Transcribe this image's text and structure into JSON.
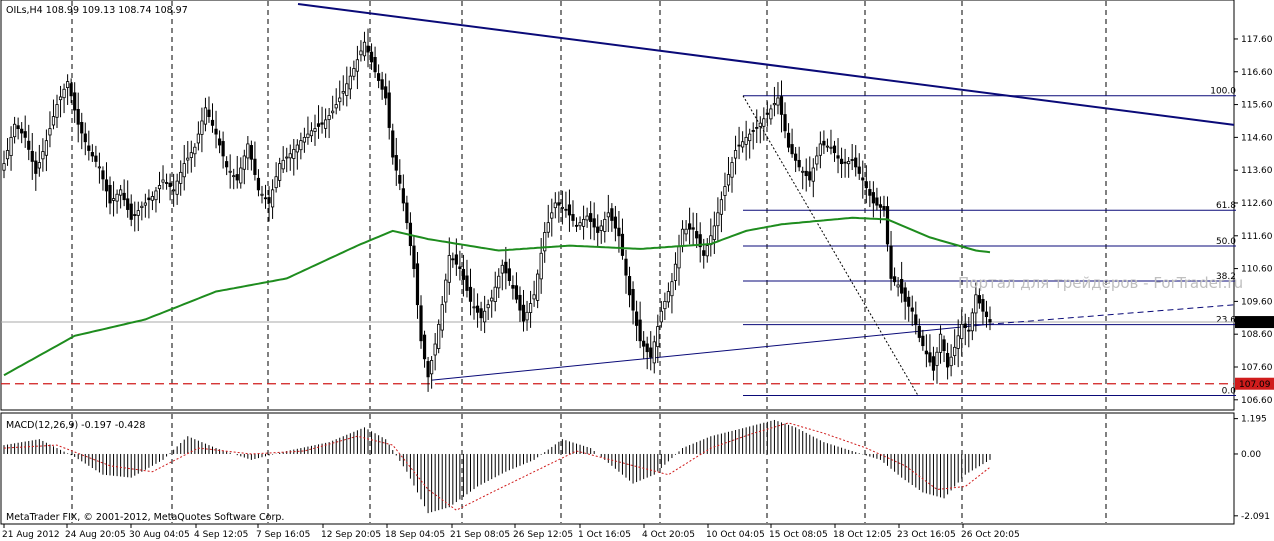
{
  "chart_data": {
    "type": "candlestick",
    "platform": "MetaTrader",
    "symbol": "OILs",
    "timeframe": "H4",
    "header": "OILs,H4  108.99 109.13 108.74 108.97",
    "ohlc_last": {
      "open": 108.99,
      "high": 109.13,
      "low": 108.74,
      "close": 108.97
    },
    "price_axis": {
      "ticks": [
        "117.60",
        "116.60",
        "115.60",
        "114.60",
        "113.60",
        "112.60",
        "111.60",
        "110.60",
        "109.60",
        "108.60",
        "107.60",
        "106.60"
      ],
      "range": [
        106.35,
        118.3
      ]
    },
    "current_price_label": "108.97",
    "support_price_label": "107.09",
    "x_axis_labels": [
      "21 Aug 2012",
      "24 Aug 20:05",
      "30 Aug 04:05",
      "4 Sep 12:05",
      "7 Sep 16:05",
      "12 Sep 20:05",
      "18 Sep 04:05",
      "21 Sep 08:05",
      "26 Sep 12:05",
      "1 Oct 16:05",
      "4 Oct 20:05",
      "10 Oct 04:05",
      "15 Oct 08:05",
      "18 Oct 12:05",
      "23 Oct 16:05",
      "26 Oct 20:05"
    ],
    "fibonacci": {
      "levels": [
        {
          "label": "100.0",
          "price": 115.87
        },
        {
          "label": "61.8",
          "price": 112.38
        },
        {
          "label": "50.0",
          "price": 111.29
        },
        {
          "label": "38.2",
          "price": 110.22
        },
        {
          "label": "23.6",
          "price": 108.89
        },
        {
          "label": "0.0",
          "price": 106.73
        }
      ]
    },
    "price_series": [
      {
        "x": 0,
        "v": 113.8
      },
      {
        "x": 3,
        "v": 115.0
      },
      {
        "x": 6,
        "v": 114.6
      },
      {
        "x": 9,
        "v": 113.5
      },
      {
        "x": 12,
        "v": 114.5
      },
      {
        "x": 15,
        "v": 115.6
      },
      {
        "x": 18,
        "v": 116.3
      },
      {
        "x": 21,
        "v": 115.0
      },
      {
        "x": 24,
        "v": 114.2
      },
      {
        "x": 27,
        "v": 113.7
      },
      {
        "x": 30,
        "v": 112.6
      },
      {
        "x": 33,
        "v": 113.0
      },
      {
        "x": 36,
        "v": 112.1
      },
      {
        "x": 39,
        "v": 112.5
      },
      {
        "x": 42,
        "v": 112.8
      },
      {
        "x": 45,
        "v": 113.3
      },
      {
        "x": 48,
        "v": 113.0
      },
      {
        "x": 51,
        "v": 113.8
      },
      {
        "x": 54,
        "v": 114.3
      },
      {
        "x": 57,
        "v": 115.5
      },
      {
        "x": 60,
        "v": 114.7
      },
      {
        "x": 63,
        "v": 113.7
      },
      {
        "x": 66,
        "v": 113.3
      },
      {
        "x": 69,
        "v": 114.4
      },
      {
        "x": 72,
        "v": 113.0
      },
      {
        "x": 75,
        "v": 112.6
      },
      {
        "x": 78,
        "v": 113.8
      },
      {
        "x": 81,
        "v": 114.1
      },
      {
        "x": 84,
        "v": 114.5
      },
      {
        "x": 87,
        "v": 114.8
      },
      {
        "x": 90,
        "v": 115.0
      },
      {
        "x": 93,
        "v": 115.4
      },
      {
        "x": 96,
        "v": 116.0
      },
      {
        "x": 99,
        "v": 116.7
      },
      {
        "x": 102,
        "v": 117.5
      },
      {
        "x": 105,
        "v": 116.6
      },
      {
        "x": 108,
        "v": 115.8
      },
      {
        "x": 110,
        "v": 114.0
      },
      {
        "x": 112,
        "v": 113.2
      },
      {
        "x": 114,
        "v": 112.0
      },
      {
        "x": 116,
        "v": 110.6
      },
      {
        "x": 118,
        "v": 108.4
      },
      {
        "x": 120,
        "v": 107.3
      },
      {
        "x": 122,
        "v": 108.3
      },
      {
        "x": 124,
        "v": 109.5
      },
      {
        "x": 126,
        "v": 111.0
      },
      {
        "x": 129,
        "v": 110.6
      },
      {
        "x": 132,
        "v": 109.6
      },
      {
        "x": 135,
        "v": 109.1
      },
      {
        "x": 138,
        "v": 109.7
      },
      {
        "x": 141,
        "v": 110.7
      },
      {
        "x": 144,
        "v": 110.0
      },
      {
        "x": 147,
        "v": 109.0
      },
      {
        "x": 150,
        "v": 109.8
      },
      {
        "x": 153,
        "v": 111.7
      },
      {
        "x": 156,
        "v": 112.6
      },
      {
        "x": 159,
        "v": 112.4
      },
      {
        "x": 162,
        "v": 111.9
      },
      {
        "x": 165,
        "v": 112.2
      },
      {
        "x": 168,
        "v": 111.7
      },
      {
        "x": 171,
        "v": 112.3
      },
      {
        "x": 174,
        "v": 111.6
      },
      {
        "x": 177,
        "v": 109.8
      },
      {
        "x": 180,
        "v": 108.4
      },
      {
        "x": 183,
        "v": 107.9
      },
      {
        "x": 186,
        "v": 109.3
      },
      {
        "x": 189,
        "v": 110.2
      },
      {
        "x": 192,
        "v": 111.8
      },
      {
        "x": 195,
        "v": 111.8
      },
      {
        "x": 198,
        "v": 111.0
      },
      {
        "x": 201,
        "v": 111.9
      },
      {
        "x": 204,
        "v": 113.1
      },
      {
        "x": 207,
        "v": 114.2
      },
      {
        "x": 210,
        "v": 114.6
      },
      {
        "x": 213,
        "v": 114.9
      },
      {
        "x": 216,
        "v": 115.3
      },
      {
        "x": 219,
        "v": 115.8
      },
      {
        "x": 222,
        "v": 114.3
      },
      {
        "x": 225,
        "v": 113.7
      },
      {
        "x": 228,
        "v": 113.3
      },
      {
        "x": 231,
        "v": 114.4
      },
      {
        "x": 234,
        "v": 114.3
      },
      {
        "x": 237,
        "v": 113.8
      },
      {
        "x": 240,
        "v": 113.9
      },
      {
        "x": 243,
        "v": 113.3
      },
      {
        "x": 246,
        "v": 112.6
      },
      {
        "x": 249,
        "v": 112.4
      },
      {
        "x": 251,
        "v": 110.3
      },
      {
        "x": 253,
        "v": 110.1
      },
      {
        "x": 255,
        "v": 109.6
      },
      {
        "x": 257,
        "v": 109.3
      },
      {
        "x": 259,
        "v": 108.5
      },
      {
        "x": 261,
        "v": 108.0
      },
      {
        "x": 263,
        "v": 107.5
      },
      {
        "x": 265,
        "v": 108.6
      },
      {
        "x": 267,
        "v": 107.6
      },
      {
        "x": 269,
        "v": 108.2
      },
      {
        "x": 271,
        "v": 108.9
      },
      {
        "x": 273,
        "v": 108.7
      },
      {
        "x": 275,
        "v": 109.8
      },
      {
        "x": 277,
        "v": 109.3
      },
      {
        "x": 279,
        "v": 108.97
      }
    ],
    "ma_series": [
      {
        "x": 0,
        "v": 107.35
      },
      {
        "x": 20,
        "v": 108.55
      },
      {
        "x": 40,
        "v": 109.05
      },
      {
        "x": 60,
        "v": 109.9
      },
      {
        "x": 80,
        "v": 110.3
      },
      {
        "x": 100,
        "v": 111.3
      },
      {
        "x": 110,
        "v": 111.75
      },
      {
        "x": 120,
        "v": 111.5
      },
      {
        "x": 140,
        "v": 111.15
      },
      {
        "x": 160,
        "v": 111.3
      },
      {
        "x": 180,
        "v": 111.2
      },
      {
        "x": 200,
        "v": 111.35
      },
      {
        "x": 210,
        "v": 111.75
      },
      {
        "x": 220,
        "v": 111.95
      },
      {
        "x": 240,
        "v": 112.15
      },
      {
        "x": 250,
        "v": 112.1
      },
      {
        "x": 262,
        "v": 111.55
      },
      {
        "x": 275,
        "v": 111.15
      },
      {
        "x": 279,
        "v": 111.1
      }
    ],
    "macd": {
      "label": "MACD(12,26,9) -0.197 -0.428",
      "ticks": [
        "1.195",
        "0.00",
        "-2.091"
      ],
      "range": [
        -2.3,
        1.25
      ],
      "histogram": [
        {
          "x": 0,
          "v": 0.3
        },
        {
          "x": 10,
          "v": 0.5
        },
        {
          "x": 20,
          "v": -0.1
        },
        {
          "x": 28,
          "v": -0.7
        },
        {
          "x": 36,
          "v": -0.8
        },
        {
          "x": 45,
          "v": -0.2
        },
        {
          "x": 52,
          "v": 0.6
        },
        {
          "x": 60,
          "v": 0.2
        },
        {
          "x": 70,
          "v": -0.2
        },
        {
          "x": 80,
          "v": 0.1
        },
        {
          "x": 92,
          "v": 0.4
        },
        {
          "x": 102,
          "v": 0.9
        },
        {
          "x": 108,
          "v": 0.5
        },
        {
          "x": 114,
          "v": -0.6
        },
        {
          "x": 120,
          "v": -2.0
        },
        {
          "x": 126,
          "v": -1.8
        },
        {
          "x": 134,
          "v": -1.1
        },
        {
          "x": 142,
          "v": -0.6
        },
        {
          "x": 150,
          "v": -0.2
        },
        {
          "x": 158,
          "v": 0.5
        },
        {
          "x": 166,
          "v": 0.2
        },
        {
          "x": 172,
          "v": -0.4
        },
        {
          "x": 178,
          "v": -1.0
        },
        {
          "x": 184,
          "v": -0.7
        },
        {
          "x": 192,
          "v": 0.2
        },
        {
          "x": 200,
          "v": 0.6
        },
        {
          "x": 210,
          "v": 0.9
        },
        {
          "x": 218,
          "v": 1.15
        },
        {
          "x": 224,
          "v": 0.9
        },
        {
          "x": 232,
          "v": 0.4
        },
        {
          "x": 240,
          "v": 0.1
        },
        {
          "x": 248,
          "v": -0.2
        },
        {
          "x": 254,
          "v": -0.8
        },
        {
          "x": 260,
          "v": -1.3
        },
        {
          "x": 266,
          "v": -1.5
        },
        {
          "x": 272,
          "v": -0.7
        },
        {
          "x": 279,
          "v": -0.2
        }
      ],
      "signal": [
        {
          "x": 0,
          "v": 0.2
        },
        {
          "x": 15,
          "v": 0.3
        },
        {
          "x": 30,
          "v": -0.4
        },
        {
          "x": 42,
          "v": -0.6
        },
        {
          "x": 55,
          "v": 0.2
        },
        {
          "x": 70,
          "v": 0.0
        },
        {
          "x": 85,
          "v": 0.1
        },
        {
          "x": 100,
          "v": 0.6
        },
        {
          "x": 110,
          "v": 0.3
        },
        {
          "x": 120,
          "v": -1.2
        },
        {
          "x": 128,
          "v": -1.9
        },
        {
          "x": 138,
          "v": -1.3
        },
        {
          "x": 150,
          "v": -0.6
        },
        {
          "x": 162,
          "v": 0.1
        },
        {
          "x": 175,
          "v": -0.3
        },
        {
          "x": 188,
          "v": -0.7
        },
        {
          "x": 200,
          "v": 0.2
        },
        {
          "x": 212,
          "v": 0.7
        },
        {
          "x": 222,
          "v": 1.05
        },
        {
          "x": 232,
          "v": 0.7
        },
        {
          "x": 244,
          "v": 0.2
        },
        {
          "x": 255,
          "v": -0.4
        },
        {
          "x": 264,
          "v": -1.2
        },
        {
          "x": 272,
          "v": -1.1
        },
        {
          "x": 279,
          "v": -0.45
        }
      ]
    },
    "footer": "MetaTrader FIX, © 2001-2012, MetaQuotes Software Corp.",
    "watermark": "Портал для трейдеров - ForTrader.ru",
    "colors": {
      "candles": "#000000",
      "moving_average": "#1e8c1e",
      "long_trendline": "#0a0a78",
      "fibonacci": "#0a0a78",
      "support_line": "#d01c1c",
      "macd_signal": "#d01c1c",
      "grid": "#000000"
    }
  }
}
